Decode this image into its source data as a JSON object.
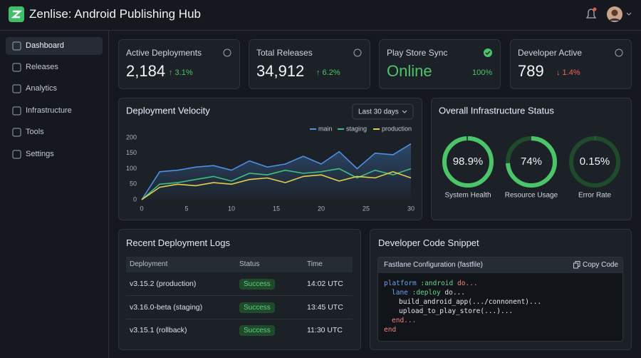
{
  "header": {
    "title": "Zenlise: Android Publishing Hub"
  },
  "sidebar": {
    "items": [
      "Dashboard",
      "Releases",
      "Analytics",
      "Infrastructure",
      "Tools",
      "Settings"
    ]
  },
  "kpis": [
    {
      "label": "Active Deployments",
      "value": "2,184",
      "change": "↑ 3.1%"
    },
    {
      "label": "Total Releases",
      "value": "34,912",
      "change": "↑ 6.2%"
    },
    {
      "label": "Play Store Sync",
      "value": "Online",
      "change": "100%"
    },
    {
      "label": "Developer Active",
      "value": "789",
      "change": "↓ 1.4%"
    }
  ],
  "chart_data": {
    "type": "line",
    "title": "Deployment Velocity",
    "range": "Last 30 days",
    "x": [
      0,
      2,
      4,
      6,
      8,
      10,
      12,
      14,
      16,
      18,
      20,
      22,
      24,
      26,
      28,
      30
    ],
    "series": [
      {
        "name": "main",
        "color": "#4d8fe3",
        "values": [
          0,
          90,
          95,
          105,
          110,
          95,
          125,
          105,
          115,
          140,
          115,
          155,
          100,
          150,
          145,
          180
        ]
      },
      {
        "name": "staging",
        "color": "#3fbf7f",
        "values": [
          0,
          50,
          55,
          65,
          75,
          60,
          85,
          80,
          95,
          85,
          90,
          100,
          70,
          95,
          80,
          100
        ]
      },
      {
        "name": "production",
        "color": "#e3cf4a",
        "values": [
          0,
          40,
          50,
          45,
          55,
          50,
          65,
          70,
          55,
          75,
          80,
          60,
          75,
          70,
          90,
          70
        ]
      }
    ],
    "xlim": [
      0,
      30
    ],
    "xticks": [
      0,
      5,
      10,
      15,
      20,
      25,
      30
    ],
    "ylim": [
      0,
      200
    ],
    "yticks": [
      0,
      50,
      100,
      150,
      200
    ],
    "grid": false,
    "legend": "top-right"
  },
  "infrastructure": {
    "title": "Overall Infrastructure Status",
    "gauges": [
      {
        "value": 98.9,
        "value_label": "98.9%",
        "label": "System Health"
      },
      {
        "value": 74,
        "value_label": "74%",
        "label": "Resource Usage"
      },
      {
        "value": 0.15,
        "value_label": "0.15%",
        "label": "Error Rate"
      }
    ]
  },
  "logs": {
    "title": "Recent Deployment Logs",
    "columns": [
      "Deployment",
      "Status",
      "Time"
    ],
    "rows": [
      [
        "v3.15.2 (production)",
        "Success",
        "14:02 UTC"
      ],
      [
        "v3.16.0-beta (staging)",
        "Success",
        "13:45 UTC"
      ],
      [
        "v3.15.1 (rollback)",
        "Success",
        "11:30 UTC"
      ]
    ]
  },
  "snippet": {
    "title": "Developer Code Snippet",
    "file": "Fastlane Configuration (fastfile)",
    "copy": "Copy Code",
    "lines": [
      [
        "platform",
        " :android",
        " do..."
      ],
      [
        "lane",
        " :deploy",
        " do..."
      ],
      [
        "build_android_app(.../connonent)..."
      ],
      [
        "upload_to_play_store(...)..."
      ],
      [
        "end..."
      ],
      [
        "end"
      ]
    ]
  }
}
